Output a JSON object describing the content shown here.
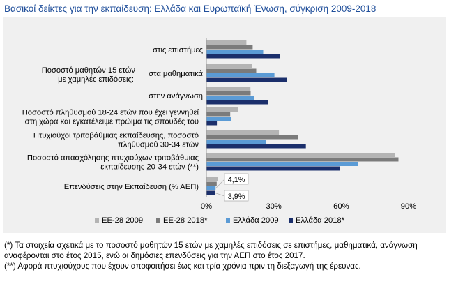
{
  "title": "Βασικοί δείκτες για την εκπαίδευση: Ελλάδα και Ευρωπαϊκή Ένωση, σύγκριση 2009-2018",
  "chart_data": {
    "type": "bar",
    "orientation": "horizontal",
    "group_label": [
      "Ποσοστό μαθητών 15 ετών",
      "με χαμηλές επιδόσεις:"
    ],
    "categories": [
      {
        "label": [
          "στις επιστήμες"
        ]
      },
      {
        "label": [
          "στα μαθηματικά"
        ]
      },
      {
        "label": [
          "στην ανάγνωση"
        ]
      },
      {
        "label": [
          "Ποσοστό πληθυσμού 18-24 ετών που έχει γεννηθεί",
          "στη χώρα και εγκατέλειψε πρώιμα τις σπουδές του"
        ]
      },
      {
        "label": [
          "Πτυχιούχοι τριτοβάθμιας εκπαίδευσης, ποσοστό",
          "πληθυσμού 30-34 ετών"
        ]
      },
      {
        "label": [
          "Ποσοστό απασχόλησης πτυχιούχων τριτοβάθμιας",
          "εκπαίδευσης 20-34 ετών (**)"
        ]
      },
      {
        "label": [
          "Επενδύσεις στην Εκπαίδευση (% ΑΕΠ)"
        ]
      }
    ],
    "series": [
      {
        "name": "ΕΕ-28 2009",
        "color": "#b4b4b4",
        "values": [
          17.8,
          20.3,
          19.6,
          14.2,
          32.3,
          84.1,
          5.2
        ]
      },
      {
        "name": "ΕΕ-28 2018*",
        "color": "#7b7b7b",
        "values": [
          20.6,
          22.2,
          19.7,
          10.6,
          40.7,
          85.5,
          4.6
        ]
      },
      {
        "name": "Ελλάδα 2009",
        "color": "#5b9bd5",
        "values": [
          25.3,
          30.3,
          21.3,
          11.0,
          26.5,
          67.5,
          4.1
        ]
      },
      {
        "name": "Ελλάδα 2018*",
        "color": "#1b2f6b",
        "values": [
          32.7,
          35.8,
          27.3,
          4.7,
          44.3,
          59.4,
          3.9
        ]
      }
    ],
    "annotations": [
      "4,1%",
      "3,9%"
    ],
    "x_ticks": [
      "0%",
      "30%",
      "60%",
      "90%"
    ],
    "xlim": [
      0,
      90
    ],
    "grid": false,
    "legend": "bottom"
  },
  "notes": [
    "(*) Τα στοιχεία σχετικά με το ποσοστό μαθητών 15 ετών με χαμηλές επιδόσεις σε επιστήμες, μαθηματικά, ανάγνωση",
    "αναφέρονται στο έτος 2015, ενώ οι δημόσιες επενδύσεις για την ΑΕΠ στο έτος 2017.",
    "(**) Αφορά πτυχιούχους που έχουν αποφοιτήσει έως και τρία χρόνια πριν τη διεξαγωγή της έρευνας."
  ]
}
